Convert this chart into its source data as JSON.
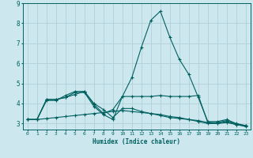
{
  "xlabel": "Humidex (Indice chaleur)",
  "bg_color": "#cce8ee",
  "grid_color": "#b0d0d8",
  "line_color": "#006060",
  "xlim": [
    -0.5,
    23.5
  ],
  "ylim": [
    2.7,
    9.0
  ],
  "xticks": [
    0,
    1,
    2,
    3,
    4,
    5,
    6,
    7,
    8,
    9,
    10,
    11,
    12,
    13,
    14,
    15,
    16,
    17,
    18,
    19,
    20,
    21,
    22,
    23
  ],
  "yticks": [
    3,
    4,
    5,
    6,
    7,
    8
  ],
  "series": [
    {
      "x": [
        0,
        1,
        2,
        3,
        4,
        5,
        6,
        7,
        8,
        9,
        10,
        11,
        12,
        13,
        14,
        15,
        16,
        17,
        18,
        19,
        20,
        21,
        22,
        23
      ],
      "y": [
        3.2,
        3.2,
        4.2,
        4.2,
        4.3,
        4.55,
        4.55,
        3.85,
        3.45,
        3.2,
        4.35,
        5.3,
        6.8,
        8.15,
        8.6,
        7.3,
        6.2,
        5.45,
        4.3,
        3.1,
        3.1,
        3.2,
        3.0,
        2.9
      ]
    },
    {
      "x": [
        0,
        1,
        2,
        3,
        4,
        5,
        6,
        7,
        8,
        9,
        10,
        11,
        12,
        13,
        14,
        15,
        16,
        17,
        18,
        19,
        20,
        21,
        22,
        23
      ],
      "y": [
        3.2,
        3.2,
        4.15,
        4.15,
        4.4,
        4.6,
        4.6,
        3.95,
        3.5,
        3.7,
        4.35,
        4.35,
        4.35,
        4.35,
        4.4,
        4.35,
        4.35,
        4.35,
        4.4,
        3.05,
        3.05,
        3.15,
        2.98,
        2.88
      ]
    },
    {
      "x": [
        0,
        1,
        2,
        3,
        4,
        5,
        6,
        7,
        8,
        9,
        10,
        11,
        12,
        13,
        14,
        15,
        16,
        17,
        18,
        19,
        20,
        21,
        22,
        23
      ],
      "y": [
        3.2,
        3.2,
        4.2,
        4.2,
        4.3,
        4.45,
        4.6,
        4.0,
        3.7,
        3.3,
        3.75,
        3.75,
        3.6,
        3.5,
        3.4,
        3.3,
        3.25,
        3.2,
        3.1,
        3.0,
        3.0,
        3.1,
        2.95,
        2.9
      ]
    },
    {
      "x": [
        0,
        1,
        2,
        3,
        4,
        5,
        6,
        7,
        8,
        9,
        10,
        11,
        12,
        13,
        14,
        15,
        16,
        17,
        18,
        19,
        20,
        21,
        22,
        23
      ],
      "y": [
        3.2,
        3.2,
        3.25,
        3.3,
        3.35,
        3.4,
        3.45,
        3.5,
        3.55,
        3.6,
        3.65,
        3.6,
        3.55,
        3.5,
        3.45,
        3.35,
        3.3,
        3.2,
        3.15,
        3.05,
        3.0,
        3.05,
        2.95,
        2.85
      ]
    }
  ]
}
